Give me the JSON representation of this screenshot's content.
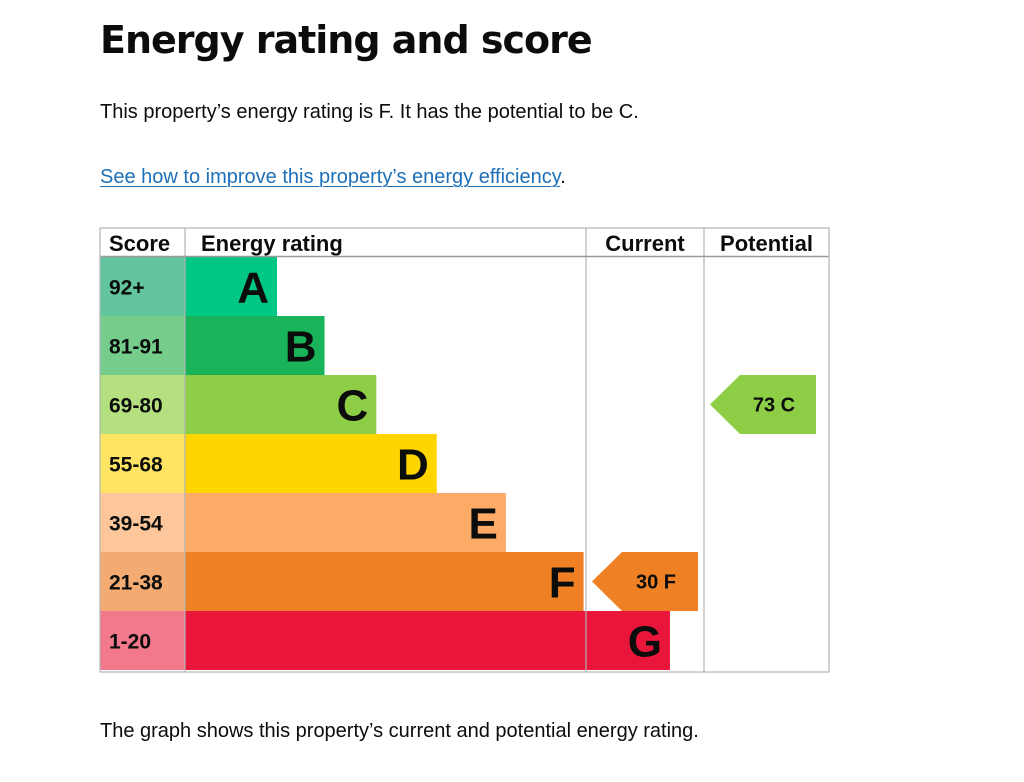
{
  "page": {
    "title": "Energy rating and score",
    "summary": "This property’s energy rating is F. It has the potential to be C.",
    "improve_link": "See how to improve this property’s energy efficiency",
    "improve_link_suffix": ".",
    "caption": "The graph shows this property’s current and potential energy rating."
  },
  "chart_data": {
    "type": "bar",
    "headers": {
      "score": "Score",
      "rating": "Energy rating",
      "current": "Current",
      "potential": "Potential"
    },
    "bands": [
      {
        "rating": "A",
        "score_range": "92+",
        "min_score": 92,
        "color": "#00c781",
        "score_color": "#62c59e"
      },
      {
        "rating": "B",
        "score_range": "81-91",
        "min_score": 81,
        "color": "#19b459",
        "score_color": "#76cc8a"
      },
      {
        "rating": "C",
        "score_range": "69-80",
        "min_score": 69,
        "color": "#8dce46",
        "score_color": "#b5e07f"
      },
      {
        "rating": "D",
        "score_range": "55-68",
        "min_score": 55,
        "color": "#ffd500",
        "score_color": "#ffe463"
      },
      {
        "rating": "E",
        "score_range": "39-54",
        "min_score": 39,
        "color": "#fcaa65",
        "score_color": "#fdc79b"
      },
      {
        "rating": "F",
        "score_range": "21-38",
        "min_score": 21,
        "color": "#ef8023",
        "score_color": "#f4ab71"
      },
      {
        "rating": "G",
        "score_range": "1-20",
        "min_score": 1,
        "color": "#e9153b",
        "score_color": "#f2788b"
      }
    ],
    "current": {
      "score": 30,
      "rating": "F"
    },
    "potential": {
      "score": 73,
      "rating": "C"
    }
  }
}
